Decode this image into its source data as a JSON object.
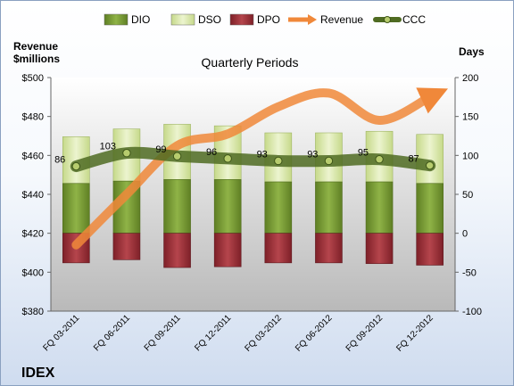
{
  "chart_data": {
    "type": "bar",
    "title": "Quarterly Periods",
    "company": "IDEX",
    "left_axis_label_line1": "Revenue",
    "left_axis_label_line2": "$millions",
    "right_axis_label": "Days",
    "categories": [
      "FQ 03-2011",
      "FQ 06-2011",
      "FQ 09-2011",
      "FQ 12-2011",
      "FQ 03-2012",
      "FQ 06-2012",
      "FQ 09-2012",
      "FQ 12-2012"
    ],
    "left_ticks": [
      "$380",
      "$400",
      "$420",
      "$440",
      "$460",
      "$480",
      "$500"
    ],
    "right_ticks": [
      "-100",
      "-50",
      "0",
      "50",
      "100",
      "150",
      "200"
    ],
    "left_ylim": [
      380,
      500
    ],
    "right_ylim": [
      -100,
      200
    ],
    "legend": [
      {
        "key": "dio",
        "label": "DIO",
        "color": "#7a9a34"
      },
      {
        "key": "dso",
        "label": "DSO",
        "color": "#d8e6a8"
      },
      {
        "key": "dpo",
        "label": "DPO",
        "color": "#9c3038"
      },
      {
        "key": "revenue",
        "label": "Revenue",
        "color": "#f0883a"
      },
      {
        "key": "ccc",
        "label": "CCC",
        "color": "#4f6b22"
      }
    ],
    "series": [
      {
        "name": "DIO",
        "axis": "days",
        "values": [
          64,
          67,
          69,
          69,
          66,
          66,
          66,
          64
        ]
      },
      {
        "name": "DSO",
        "axis": "days",
        "values": [
          60,
          67,
          71,
          69,
          63,
          63,
          65,
          63
        ]
      },
      {
        "name": "DPO",
        "axis": "days",
        "values": [
          -38,
          -34,
          -44,
          -43,
          -38,
          -38,
          -39,
          -41
        ]
      },
      {
        "name": "Revenue",
        "axis": "revenue",
        "values": [
          414,
          440,
          465,
          471,
          485,
          492,
          478,
          490
        ]
      },
      {
        "name": "CCC",
        "axis": "days",
        "values": [
          86,
          103,
          99,
          96,
          93,
          93,
          95,
          87
        ]
      }
    ],
    "ccc_labels": [
      "86",
      "103",
      "99",
      "96",
      "93",
      "93",
      "95",
      "87"
    ],
    "grid": false,
    "legend_position": "top"
  }
}
